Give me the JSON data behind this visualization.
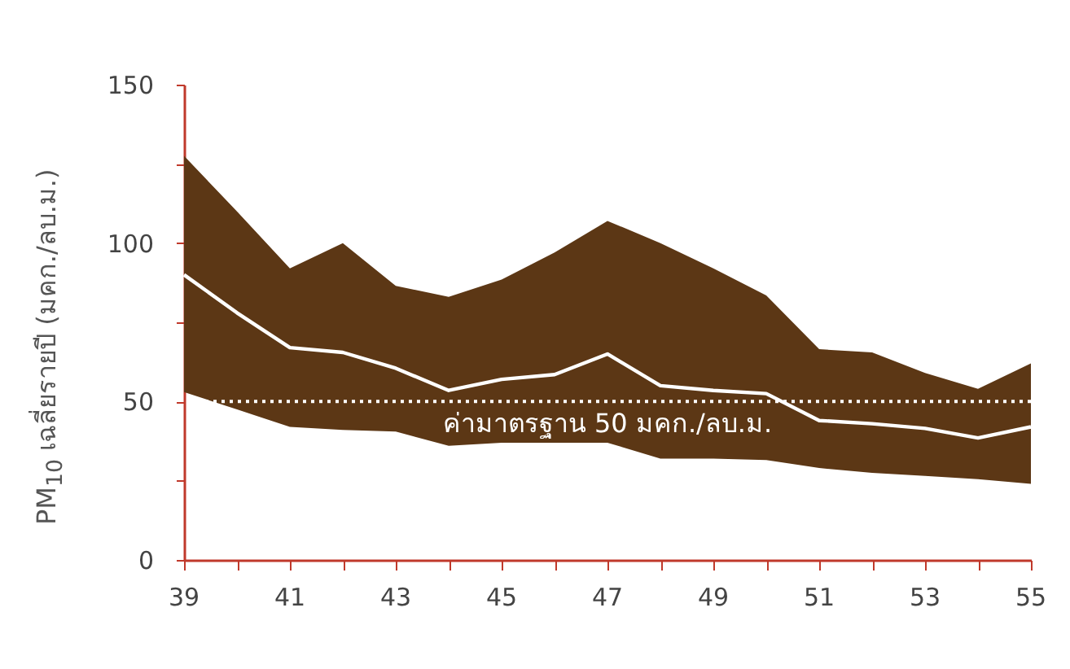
{
  "chart_data": {
    "type": "line",
    "ylabel": "PM$_{10}$ เฉลี่ยรายปี (มคก./ลบ.ม.)",
    "x": [
      39,
      40,
      41,
      42,
      43,
      44,
      45,
      46,
      47,
      48,
      49,
      50,
      51,
      52,
      53,
      54,
      55
    ],
    "series": [
      {
        "color": "#ffffff",
        "values": [
          90,
          78,
          67,
          65.5,
          60.5,
          53.5,
          57,
          58.5,
          65,
          55,
          53.5,
          52.5,
          44,
          43,
          41.5,
          38.5,
          42
        ],
        "lower": [
          53,
          47.5,
          42,
          41,
          40.5,
          36,
          37,
          37,
          37,
          32,
          32,
          31.5,
          29,
          27.5,
          26.5,
          25.5,
          24
        ],
        "upper": [
          127.5,
          110,
          92,
          100,
          86.5,
          83,
          88.5,
          97,
          107,
          100,
          92,
          83.5,
          66.5,
          65.5,
          59,
          54,
          62
        ]
      }
    ],
    "xlim": [
      39,
      55
    ],
    "xticks": [
      39,
      {
        "value": 40,
        "label": null
      },
      41,
      {
        "value": 42,
        "label": null
      },
      43,
      {
        "value": 44,
        "label": null
      },
      45,
      {
        "value": 46,
        "label": null
      },
      47,
      {
        "value": 48,
        "label": null
      },
      49,
      {
        "value": 50,
        "label": null
      },
      51,
      {
        "value": 52,
        "label": null
      },
      53,
      {
        "value": 54,
        "label": null
      },
      55
    ],
    "ylim": [
      0,
      150
    ],
    "yticks": [
      0,
      {
        "value": 25,
        "label": null
      },
      50,
      {
        "value": 75,
        "label": null
      },
      100,
      {
        "value": 125,
        "label": null
      },
      150
    ],
    "ref_lines": [
      {
        "axis": "y",
        "value": 50,
        "label": "ค่ามาตรฐาน 50 มคก./ลบ.ม.",
        "color": "#ffffff",
        "line_style": "dotted"
      }
    ],
    "grid": false,
    "marker": "none",
    "line_style": "solid"
  }
}
